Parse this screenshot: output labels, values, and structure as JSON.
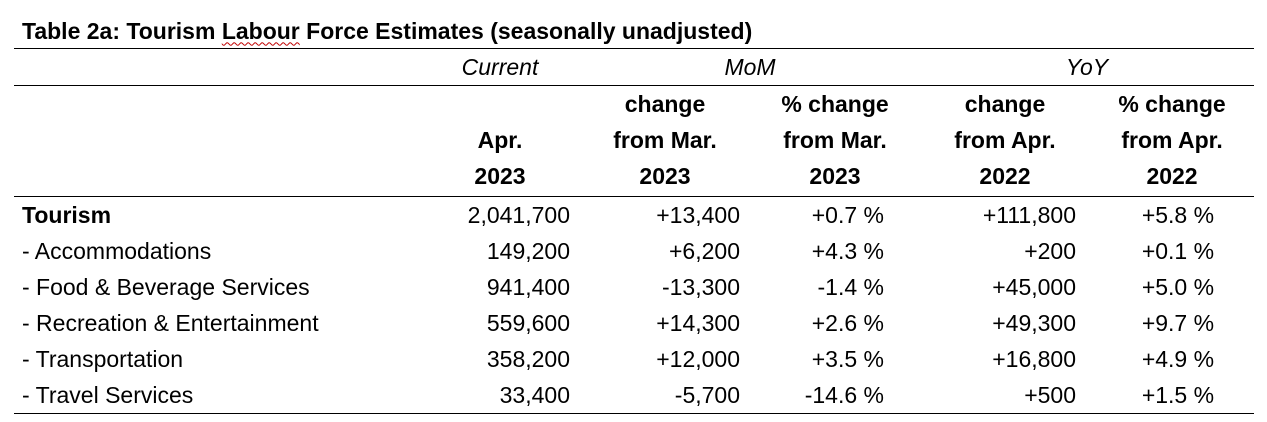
{
  "table": {
    "title_prefix": "Table 2a:  Tourism ",
    "title_squiggle": "Labour",
    "title_suffix": " Force Estimates (seasonally unadjusted)",
    "groups": {
      "current": "Current",
      "mom": "MoM",
      "yoy": "YoY"
    },
    "headers": [
      [
        "Apr.",
        "2023"
      ],
      [
        "change",
        "from Mar.",
        "2023"
      ],
      [
        "% change",
        "from Mar.",
        "2023"
      ],
      [
        "change",
        "from Apr.",
        "2022"
      ],
      [
        "% change",
        "from Apr.",
        "2022"
      ]
    ],
    "rows": [
      {
        "label": "Tourism",
        "values": [
          "2,041,700",
          "+13,400",
          "+0.7 %",
          "+111,800",
          "+5.8 %"
        ]
      },
      {
        "label": "- Accommodations",
        "values": [
          "149,200",
          "+6,200",
          "+4.3 %",
          "+200",
          "+0.1 %"
        ]
      },
      {
        "label": "- Food & Beverage Services",
        "values": [
          "941,400",
          "-13,300",
          "-1.4 %",
          "+45,000",
          "+5.0 %"
        ]
      },
      {
        "label": "- Recreation & Entertainment",
        "values": [
          "559,600",
          "+14,300",
          "+2.6 %",
          "+49,300",
          "+9.7 %"
        ]
      },
      {
        "label": "- Transportation",
        "values": [
          "358,200",
          "+12,000",
          "+3.5 %",
          "+16,800",
          "+4.9 %"
        ]
      },
      {
        "label": "- Travel Services",
        "values": [
          "33,400",
          "-5,700",
          "-14.6 %",
          "+500",
          "+1.5 %"
        ]
      }
    ]
  }
}
